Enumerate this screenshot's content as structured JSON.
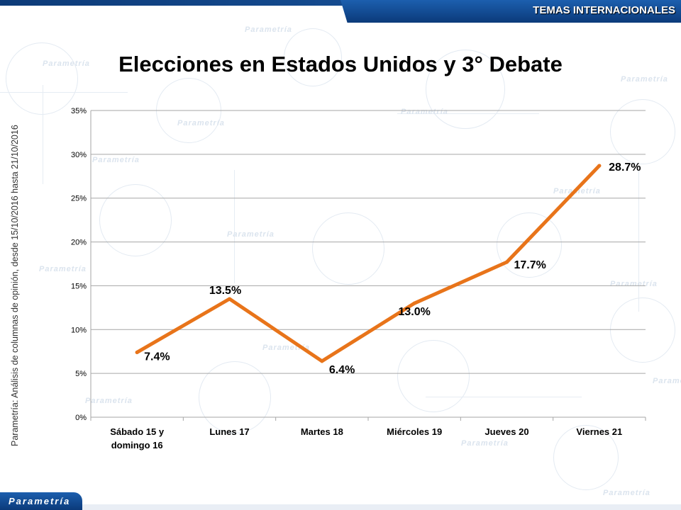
{
  "header": {
    "section_label": "TEMAS INTERNACIONALES"
  },
  "title": "Elecciones en Estados Unidos y 3° Debate",
  "side_note": "Parametría: Análisis de columnas de opinión, desde 15/10/2016 hasta  21/10/2016",
  "brand": {
    "name": "Parametría",
    "color": "#0b3a7a"
  },
  "watermark_text": "Parametría",
  "colors": {
    "line": "#E8741A",
    "grid": "#A6A6A6",
    "header": "#0B3A7A"
  },
  "chart_data": {
    "type": "line",
    "title": "Elecciones en Estados Unidos y 3° Debate",
    "categories": [
      "Sábado 15 y domingo 16",
      "Lunes 17",
      "Martes 18",
      "Miércoles 19",
      "Jueves 20",
      "Viernes 21"
    ],
    "category_lines": [
      [
        "Sábado 15 y",
        "domingo 16"
      ],
      [
        "Lunes 17"
      ],
      [
        "Martes 18"
      ],
      [
        "Miércoles 19"
      ],
      [
        "Jueves 20"
      ],
      [
        "Viernes 21"
      ]
    ],
    "series": [
      {
        "values": [
          7.4,
          13.5,
          6.4,
          13.0,
          17.7,
          28.7
        ],
        "labels": [
          "7.4%",
          "13.5%",
          "6.4%",
          "13.0%",
          "17.7%",
          "28.7%"
        ]
      }
    ],
    "ylim": [
      0,
      35
    ],
    "yticks": [
      0,
      5,
      10,
      15,
      20,
      25,
      30,
      35
    ],
    "ytick_labels": [
      "0%",
      "5%",
      "10%",
      "15%",
      "20%",
      "25%",
      "30%",
      "35%"
    ],
    "xlabel": "",
    "ylabel": "",
    "grid": true,
    "legend": "none"
  }
}
